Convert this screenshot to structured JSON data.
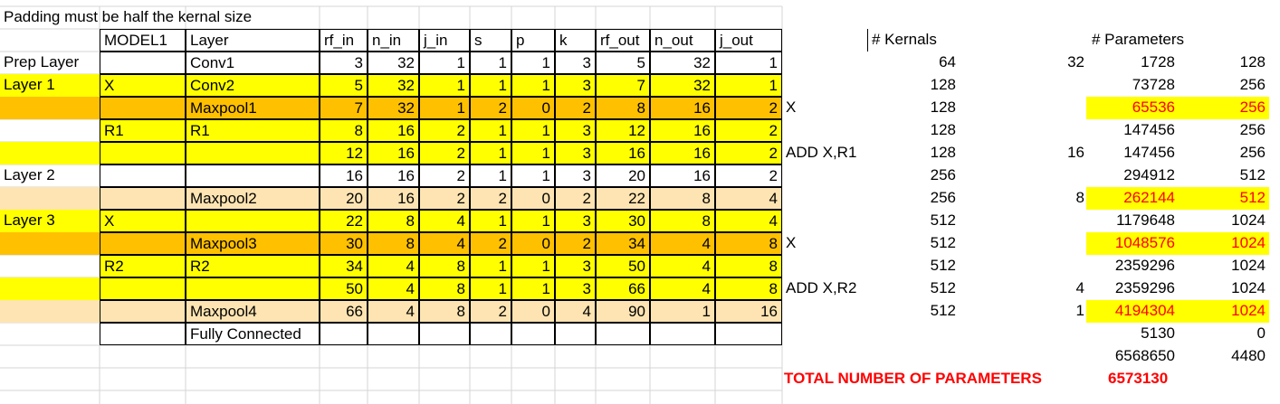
{
  "note": "Padding must be half the kernal size",
  "headers": {
    "model": "MODEL1",
    "layer": "Layer",
    "rf_in": "rf_in",
    "n_in": "n_in",
    "j_in": "j_in",
    "s": "s",
    "p": "p",
    "k": "k",
    "rf_out": "rf_out",
    "n_out": "n_out",
    "j_out": "j_out"
  },
  "right_headers": {
    "kernals": "# Kernals",
    "parameters": "# Parameters"
  },
  "colors": {
    "yellow": "#ffff00",
    "orange": "#ffc000",
    "peach": "#fde4b2",
    "red": "#ff0000"
  },
  "rows": [
    {
      "group": "Prep Layer",
      "model": "",
      "layer": "Conv1",
      "rf_in": "3",
      "n_in": "32",
      "j_in": "1",
      "s": "1",
      "p": "1",
      "k": "3",
      "rf_out": "5",
      "n_out": "32",
      "j_out": "1",
      "note": "",
      "kernals": "64",
      "extra": "32",
      "params": "1728",
      "bias": "128",
      "fill": "#ffffff",
      "params_hl": false
    },
    {
      "group": "Layer 1",
      "model": "X",
      "layer": "Conv2",
      "rf_in": "5",
      "n_in": "32",
      "j_in": "1",
      "s": "1",
      "p": "1",
      "k": "3",
      "rf_out": "7",
      "n_out": "32",
      "j_out": "1",
      "note": "",
      "kernals": "128",
      "extra": "",
      "params": "73728",
      "bias": "256",
      "fill": "#ffff00",
      "params_hl": false
    },
    {
      "group": "",
      "model": "",
      "layer": "Maxpool1",
      "rf_in": "7",
      "n_in": "32",
      "j_in": "1",
      "s": "2",
      "p": "0",
      "k": "2",
      "rf_out": "8",
      "n_out": "16",
      "j_out": "2",
      "note": "X",
      "kernals": "128",
      "extra": "",
      "params": "65536",
      "bias": "256",
      "fill": "#ffc000",
      "params_hl": true
    },
    {
      "group": "",
      "model": "R1",
      "layer": "R1",
      "rf_in": "8",
      "n_in": "16",
      "j_in": "2",
      "s": "1",
      "p": "1",
      "k": "3",
      "rf_out": "12",
      "n_out": "16",
      "j_out": "2",
      "note": "",
      "kernals": "128",
      "extra": "",
      "params": "147456",
      "bias": "256",
      "fill": "#ffff00",
      "params_hl": false
    },
    {
      "group": "",
      "model": "",
      "layer": "",
      "rf_in": "12",
      "n_in": "16",
      "j_in": "2",
      "s": "1",
      "p": "1",
      "k": "3",
      "rf_out": "16",
      "n_out": "16",
      "j_out": "2",
      "note": "ADD X,R1",
      "kernals": "128",
      "extra": "16",
      "params": "147456",
      "bias": "256",
      "fill": "#ffff00",
      "params_hl": false
    },
    {
      "group": "Layer 2",
      "model": "",
      "layer": "",
      "rf_in": "16",
      "n_in": "16",
      "j_in": "2",
      "s": "1",
      "p": "1",
      "k": "3",
      "rf_out": "20",
      "n_out": "16",
      "j_out": "2",
      "note": "",
      "kernals": "256",
      "extra": "",
      "params": "294912",
      "bias": "512",
      "fill": "#ffffff",
      "params_hl": false
    },
    {
      "group": "",
      "model": "",
      "layer": "Maxpool2",
      "rf_in": "20",
      "n_in": "16",
      "j_in": "2",
      "s": "2",
      "p": "0",
      "k": "2",
      "rf_out": "22",
      "n_out": "8",
      "j_out": "4",
      "note": "",
      "kernals": "256",
      "extra": "8",
      "params": "262144",
      "bias": "512",
      "fill": "#fde4b2",
      "params_hl": true
    },
    {
      "group": "Layer 3",
      "model": "X",
      "layer": "",
      "rf_in": "22",
      "n_in": "8",
      "j_in": "4",
      "s": "1",
      "p": "1",
      "k": "3",
      "rf_out": "30",
      "n_out": "8",
      "j_out": "4",
      "note": "",
      "kernals": "512",
      "extra": "",
      "params": "1179648",
      "bias": "1024",
      "fill": "#ffff00",
      "params_hl": false
    },
    {
      "group": "",
      "model": "",
      "layer": "Maxpool3",
      "rf_in": "30",
      "n_in": "8",
      "j_in": "4",
      "s": "2",
      "p": "0",
      "k": "2",
      "rf_out": "34",
      "n_out": "4",
      "j_out": "8",
      "note": "X",
      "kernals": "512",
      "extra": "",
      "params": "1048576",
      "bias": "1024",
      "fill": "#ffc000",
      "params_hl": true
    },
    {
      "group": "",
      "model": "R2",
      "layer": "R2",
      "rf_in": "34",
      "n_in": "4",
      "j_in": "8",
      "s": "1",
      "p": "1",
      "k": "3",
      "rf_out": "50",
      "n_out": "4",
      "j_out": "8",
      "note": "",
      "kernals": "512",
      "extra": "",
      "params": "2359296",
      "bias": "1024",
      "fill": "#ffff00",
      "params_hl": false
    },
    {
      "group": "",
      "model": "",
      "layer": "",
      "rf_in": "50",
      "n_in": "4",
      "j_in": "8",
      "s": "1",
      "p": "1",
      "k": "3",
      "rf_out": "66",
      "n_out": "4",
      "j_out": "8",
      "note": "ADD X,R2",
      "kernals": "512",
      "extra": "4",
      "params": "2359296",
      "bias": "1024",
      "fill": "#ffff00",
      "params_hl": false
    },
    {
      "group": "",
      "model": "",
      "layer": "Maxpool4",
      "rf_in": "66",
      "n_in": "4",
      "j_in": "8",
      "s": "2",
      "p": "0",
      "k": "4",
      "rf_out": "90",
      "n_out": "1",
      "j_out": "16",
      "note": "",
      "kernals": "512",
      "extra": "1",
      "params": "4194304",
      "bias": "1024",
      "fill": "#fde4b2",
      "params_hl": true
    },
    {
      "group": "",
      "model": "",
      "layer": "Fully Connected",
      "rf_in": "",
      "n_in": "",
      "j_in": "",
      "s": "",
      "p": "",
      "k": "",
      "rf_out": "",
      "n_out": "",
      "j_out": "",
      "note": "",
      "kernals": "",
      "extra": "",
      "params": "5130",
      "bias": "0",
      "fill": "#ffffff",
      "params_hl": false
    }
  ],
  "sum_row": {
    "params": "6568650",
    "bias": "4480"
  },
  "total": {
    "label": "TOTAL NUMBER OF PARAMETERS",
    "value": "6573130"
  }
}
